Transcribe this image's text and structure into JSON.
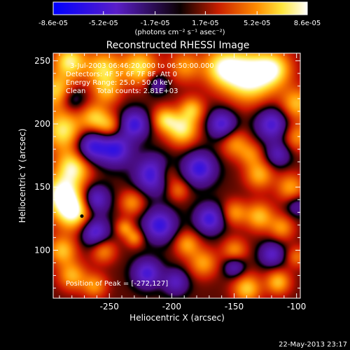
{
  "chart_data": {
    "type": "heatmap",
    "title": "Reconstructed RHESSI Image",
    "xlabel": "Heliocentric X (arcsec)",
    "ylabel": "Heliocentric Y (arcsec)",
    "xlim": [
      -295,
      -97
    ],
    "ylim": [
      62,
      256
    ],
    "x_ticks": [
      -250,
      -200,
      -150,
      -100
    ],
    "x_tick_labels": [
      "-250",
      "-200",
      "-150",
      "-100"
    ],
    "y_ticks": [
      100,
      150,
      200,
      250
    ],
    "y_tick_labels": [
      "100",
      "150",
      "200",
      "250"
    ],
    "colorbar": {
      "min": -8.6e-05,
      "max": 8.6e-05,
      "ticks": [
        -8.6e-05,
        -5.2e-05,
        -1.7e-05,
        1.7e-05,
        5.2e-05,
        8.6e-05
      ],
      "tick_labels": [
        "-8.6e-05",
        "-5.2e-05",
        "-1.7e-05",
        "1.7e-05",
        "5.2e-05",
        "8.6e-05"
      ],
      "unit_label": "(photons cm⁻² s⁻¹ asec⁻²)"
    },
    "annotations": [
      "3-Jul-2003 06:46:20.000 to 06:50:00.000",
      "Detectors: 4F 5F 6F 7F 8F, Att 0",
      "Energy Range: 25.0 - 50.0 keV",
      "Clean     Total counts: 2.81E+03"
    ],
    "peak_label": "Position of Peak = [-272,127]",
    "peak": {
      "x": -272,
      "y": 127
    },
    "field_blobs": [
      {
        "x": -282,
        "y": 250,
        "s": 9,
        "a": 0.9
      },
      {
        "x": -255,
        "y": 244,
        "s": 10,
        "a": 0.8
      },
      {
        "x": -226,
        "y": 245,
        "s": 10,
        "a": 0.85
      },
      {
        "x": -190,
        "y": 246,
        "s": 9,
        "a": 0.55
      },
      {
        "x": -160,
        "y": 245,
        "s": 11,
        "a": 0.85
      },
      {
        "x": -138,
        "y": 238,
        "s": 14,
        "a": 1.2
      },
      {
        "x": -118,
        "y": 244,
        "s": 10,
        "a": 0.75
      },
      {
        "x": -100,
        "y": 216,
        "s": 9,
        "a": 0.7
      },
      {
        "x": -100,
        "y": 190,
        "s": 8,
        "a": 0.55
      },
      {
        "x": -292,
        "y": 226,
        "s": 10,
        "a": 0.8
      },
      {
        "x": -287,
        "y": 195,
        "s": 11,
        "a": 0.9
      },
      {
        "x": -279,
        "y": 166,
        "s": 10,
        "a": 0.95
      },
      {
        "x": -290,
        "y": 146,
        "s": 10,
        "a": 0.85
      },
      {
        "x": -279,
        "y": 132,
        "s": 11,
        "a": 1.2
      },
      {
        "x": -262,
        "y": 205,
        "s": 8,
        "a": 0.7
      },
      {
        "x": -250,
        "y": 198,
        "s": 7,
        "a": 0.55
      },
      {
        "x": -252,
        "y": 226,
        "s": 8,
        "a": 0.55
      },
      {
        "x": -206,
        "y": 204,
        "s": 7,
        "a": 0.7
      },
      {
        "x": -192,
        "y": 196,
        "s": 9,
        "a": 0.9
      },
      {
        "x": -184,
        "y": 212,
        "s": 7,
        "a": 0.65
      },
      {
        "x": -205,
        "y": 160,
        "s": 7,
        "a": 0.5
      },
      {
        "x": -195,
        "y": 148,
        "s": 6,
        "a": 0.45
      },
      {
        "x": -150,
        "y": 185,
        "s": 8,
        "a": 0.55
      },
      {
        "x": -137,
        "y": 176,
        "s": 7,
        "a": 0.45
      },
      {
        "x": -130,
        "y": 160,
        "s": 8,
        "a": 0.65
      },
      {
        "x": -105,
        "y": 150,
        "s": 8,
        "a": 0.6
      },
      {
        "x": -150,
        "y": 130,
        "s": 7,
        "a": 0.55
      },
      {
        "x": -130,
        "y": 127,
        "s": 8,
        "a": 0.7
      },
      {
        "x": -112,
        "y": 118,
        "s": 7,
        "a": 0.55
      },
      {
        "x": -232,
        "y": 138,
        "s": 7,
        "a": 0.55
      },
      {
        "x": -238,
        "y": 118,
        "s": 5,
        "a": 0.55
      },
      {
        "x": -230,
        "y": 110,
        "s": 5,
        "a": 0.55
      },
      {
        "x": -255,
        "y": 100,
        "s": 7,
        "a": 0.55
      },
      {
        "x": -288,
        "y": 100,
        "s": 8,
        "a": 0.7
      },
      {
        "x": -280,
        "y": 80,
        "s": 8,
        "a": 0.65
      },
      {
        "x": -262,
        "y": 72,
        "s": 7,
        "a": 0.55
      },
      {
        "x": -188,
        "y": 105,
        "s": 7,
        "a": 0.6
      },
      {
        "x": -175,
        "y": 90,
        "s": 8,
        "a": 0.6
      },
      {
        "x": -150,
        "y": 100,
        "s": 7,
        "a": 0.55
      },
      {
        "x": -140,
        "y": 70,
        "s": 8,
        "a": 0.75
      },
      {
        "x": -115,
        "y": 75,
        "s": 7,
        "a": 0.7
      },
      {
        "x": -100,
        "y": 95,
        "s": 6,
        "a": 0.45
      },
      {
        "x": -265,
        "y": 182,
        "s": 9,
        "a": -0.95
      },
      {
        "x": -245,
        "y": 180,
        "s": 9,
        "a": -0.9
      },
      {
        "x": -230,
        "y": 200,
        "s": 8,
        "a": -0.9
      },
      {
        "x": -215,
        "y": 160,
        "s": 10,
        "a": -1.0
      },
      {
        "x": -178,
        "y": 165,
        "s": 9,
        "a": -0.95
      },
      {
        "x": -160,
        "y": 200,
        "s": 8,
        "a": -0.85
      },
      {
        "x": -120,
        "y": 200,
        "s": 9,
        "a": -0.85
      },
      {
        "x": -115,
        "y": 176,
        "s": 7,
        "a": -0.6
      },
      {
        "x": -262,
        "y": 140,
        "s": 8,
        "a": -0.9
      },
      {
        "x": -262,
        "y": 115,
        "s": 8,
        "a": -0.9
      },
      {
        "x": -210,
        "y": 120,
        "s": 9,
        "a": -0.95
      },
      {
        "x": -170,
        "y": 125,
        "s": 8,
        "a": -0.9
      },
      {
        "x": -120,
        "y": 97,
        "s": 7,
        "a": -0.7
      },
      {
        "x": -150,
        "y": 87,
        "s": 6,
        "a": -0.6
      },
      {
        "x": -220,
        "y": 82,
        "s": 8,
        "a": -0.85
      },
      {
        "x": -197,
        "y": 75,
        "s": 7,
        "a": -0.65
      },
      {
        "x": -280,
        "y": 220,
        "s": 7,
        "a": -0.5
      },
      {
        "x": -212,
        "y": 232,
        "s": 6,
        "a": -0.5
      },
      {
        "x": -100,
        "y": 135,
        "s": 6,
        "a": -0.45
      }
    ]
  }
}
